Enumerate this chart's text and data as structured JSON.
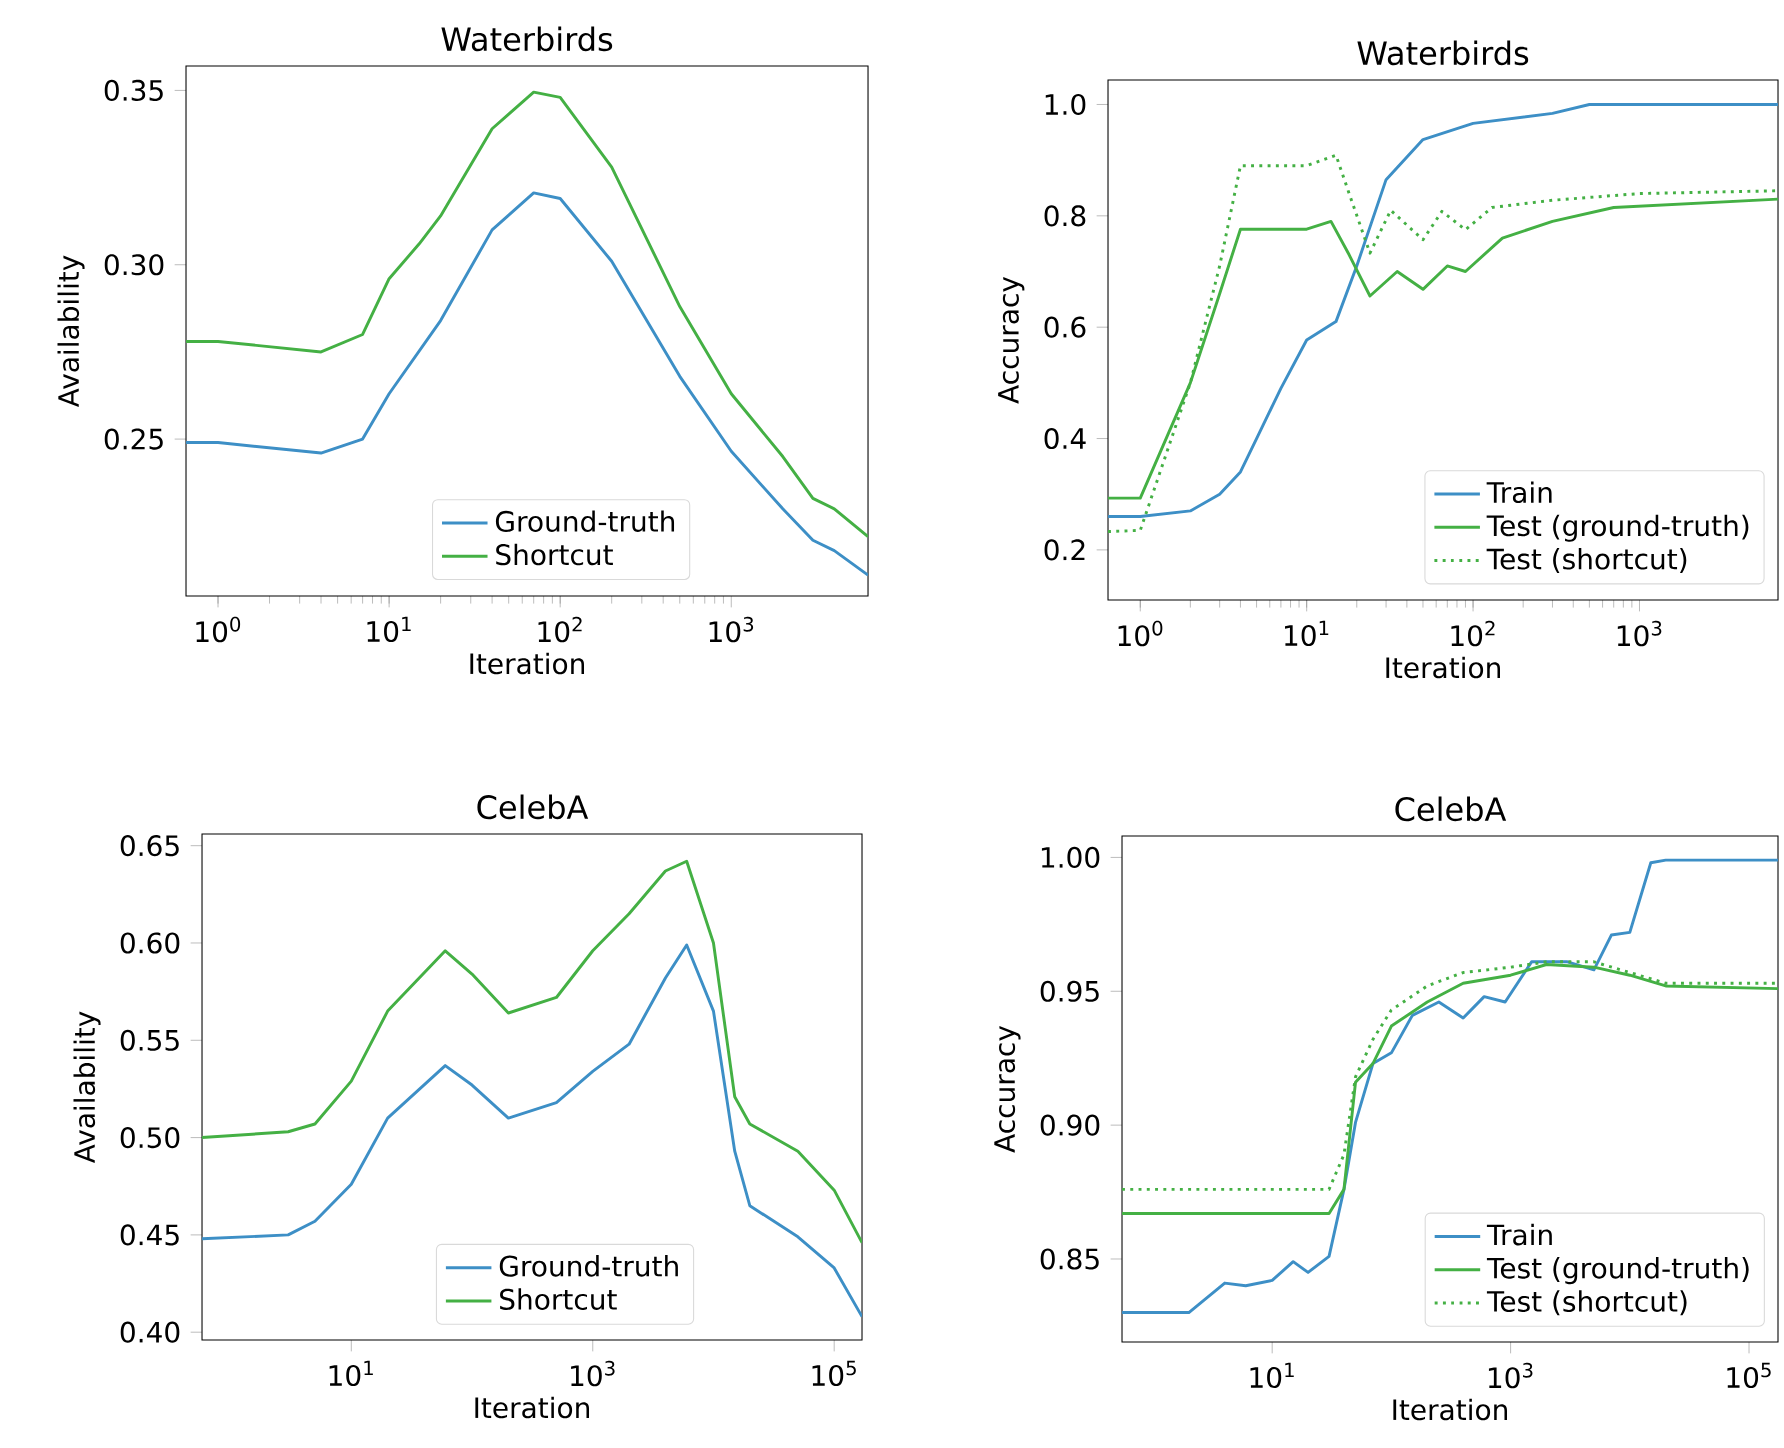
{
  "chart_data": [
    {
      "type": "line",
      "title": "Waterbirds",
      "xlabel": "Iteration",
      "ylabel": "Availability",
      "log": "x",
      "legend": "bottom",
      "xlim": [
        0.65,
        6300
      ],
      "ylim": [
        0.205,
        0.357
      ],
      "xticks": [
        {
          "value": 1,
          "label": "10$^{0}$"
        },
        {
          "value": 10,
          "label": "10$^{1}$"
        },
        {
          "value": 100,
          "label": "10$^{2}$"
        },
        {
          "value": 1000,
          "label": "10$^{3}$"
        }
      ],
      "yticks": [
        0.25,
        {
          "value": 0.3,
          "label": "0.30"
        },
        0.35
      ],
      "series": [
        {
          "name": "Ground-truth",
          "color": "#3d8fc6",
          "line_style": "solid",
          "x": [
            0.65,
            1,
            4,
            7,
            10,
            20,
            40,
            70,
            100,
            200,
            500,
            1000,
            2000,
            3000,
            4000,
            6300
          ],
          "values": [
            0.249,
            0.249,
            0.246,
            0.25,
            0.263,
            0.284,
            0.31,
            0.3206,
            0.319,
            0.301,
            0.268,
            0.2465,
            0.23,
            0.221,
            0.218,
            0.211
          ]
        },
        {
          "name": "Shortcut",
          "color": "#44b044",
          "line_style": "solid",
          "x": [
            0.65,
            1,
            4,
            7,
            10,
            15,
            20,
            40,
            70,
            100,
            200,
            500,
            1000,
            2000,
            3000,
            4000,
            6300
          ],
          "values": [
            0.278,
            0.278,
            0.275,
            0.28,
            0.296,
            0.306,
            0.314,
            0.339,
            0.3495,
            0.348,
            0.328,
            0.288,
            0.263,
            0.245,
            0.233,
            0.23,
            0.222
          ]
        }
      ]
    },
    {
      "type": "line",
      "title": "Waterbirds",
      "xlabel": "Iteration",
      "ylabel": "Accuracy",
      "log": "x",
      "legend": "bottom right",
      "xlim": [
        0.64,
        6800
      ],
      "ylim": [
        0.11,
        1.044
      ],
      "xticks": [
        {
          "value": 1,
          "label": "10$^{0}$"
        },
        {
          "value": 10,
          "label": "10$^{1}$"
        },
        {
          "value": 100,
          "label": "10$^{2}$"
        },
        {
          "value": 1000,
          "label": "10$^{3}$"
        }
      ],
      "yticks": [
        0.2,
        0.4,
        0.6,
        0.8,
        {
          "value": 1,
          "label": "1.0"
        }
      ],
      "series": [
        {
          "name": "Train",
          "color": "#3d8fc6",
          "line_style": "solid",
          "x": [
            0.64,
            1,
            2,
            3,
            4,
            5,
            7,
            10,
            15,
            20,
            30,
            50,
            100,
            300,
            500,
            6800
          ],
          "values": [
            0.26,
            0.26,
            0.27,
            0.3,
            0.34,
            0.4,
            0.49,
            0.577,
            0.61,
            0.71,
            0.865,
            0.937,
            0.966,
            0.984,
            1.0,
            1.0
          ]
        },
        {
          "name": "Test (ground-truth)",
          "color": "#44b044",
          "line_style": "solid",
          "x": [
            0.64,
            1,
            2,
            3,
            4,
            10,
            14,
            18,
            24,
            35,
            50,
            70,
            90,
            150,
            300,
            700,
            6800
          ],
          "values": [
            0.293,
            0.293,
            0.5,
            0.66,
            0.776,
            0.776,
            0.79,
            0.73,
            0.656,
            0.7,
            0.668,
            0.71,
            0.7,
            0.76,
            0.79,
            0.815,
            0.83
          ]
        },
        {
          "name": "Test (shortcut)",
          "color": "#44b044",
          "line_style": "dotted",
          "x": [
            0.64,
            1,
            2,
            3,
            4,
            10,
            15,
            18,
            24,
            32,
            50,
            65,
            90,
            130,
            300,
            1000,
            6800
          ],
          "values": [
            0.233,
            0.235,
            0.5,
            0.71,
            0.89,
            0.89,
            0.909,
            0.84,
            0.733,
            0.81,
            0.757,
            0.808,
            0.775,
            0.815,
            0.828,
            0.84,
            0.845
          ]
        }
      ]
    },
    {
      "type": "line",
      "title": "CelebA",
      "xlabel": "Iteration",
      "ylabel": "Availability",
      "log": "x",
      "legend": "bottom",
      "xlim": [
        0.58,
        170000
      ],
      "ylim": [
        0.396,
        0.656
      ],
      "xticks": [
        {
          "value": 10,
          "label": "10$^{1}$"
        },
        {
          "value": 1000,
          "label": "10$^{3}$"
        },
        {
          "value": 100000,
          "label": "10$^{5}$"
        }
      ],
      "yticks": [
        {
          "value": 0.4,
          "label": "0.40"
        },
        0.45,
        {
          "value": 0.5,
          "label": "0.50"
        },
        0.55,
        {
          "value": 0.6,
          "label": "0.60"
        },
        0.65
      ],
      "series": [
        {
          "name": "Ground-truth",
          "color": "#3d8fc6",
          "line_style": "solid",
          "x": [
            0.58,
            3,
            5,
            10,
            20,
            60,
            100,
            200,
            500,
            1000,
            2000,
            4000,
            6000,
            10000,
            15000,
            20000,
            50000,
            100000,
            170000
          ],
          "values": [
            0.448,
            0.45,
            0.457,
            0.476,
            0.51,
            0.537,
            0.527,
            0.51,
            0.518,
            0.534,
            0.548,
            0.582,
            0.599,
            0.565,
            0.493,
            0.465,
            0.449,
            0.433,
            0.408
          ]
        },
        {
          "name": "Shortcut",
          "color": "#44b044",
          "line_style": "solid",
          "x": [
            0.58,
            3,
            5,
            10,
            20,
            60,
            100,
            200,
            500,
            1000,
            2000,
            4000,
            6000,
            10000,
            15000,
            20000,
            50000,
            100000,
            170000
          ],
          "values": [
            0.5,
            0.503,
            0.507,
            0.529,
            0.565,
            0.596,
            0.584,
            0.564,
            0.572,
            0.596,
            0.615,
            0.637,
            0.642,
            0.6,
            0.521,
            0.507,
            0.493,
            0.473,
            0.446
          ]
        }
      ]
    },
    {
      "type": "line",
      "title": "CelebA",
      "xlabel": "Iteration",
      "ylabel": "Accuracy",
      "log": "x",
      "legend": "bottom right",
      "xlim": [
        0.55,
        175000
      ],
      "ylim": [
        0.819,
        1.008
      ],
      "xticks": [
        {
          "value": 10,
          "label": "10$^{1}$"
        },
        {
          "value": 1000,
          "label": "10$^{3}$"
        },
        {
          "value": 100000,
          "label": "10$^{5}$"
        }
      ],
      "yticks": [
        0.85,
        {
          "value": 0.9,
          "label": "0.90"
        },
        0.95,
        {
          "value": 1,
          "label": "1.00"
        }
      ],
      "series": [
        {
          "name": "Train",
          "color": "#3d8fc6",
          "line_style": "solid",
          "x": [
            0.55,
            2,
            4,
            6,
            10,
            15,
            20,
            30,
            40,
            50,
            70,
            100,
            150,
            250,
            400,
            600,
            900,
            1500,
            3000,
            5000,
            7000,
            10000,
            15000,
            20000,
            175000
          ],
          "values": [
            0.83,
            0.83,
            0.841,
            0.84,
            0.842,
            0.849,
            0.845,
            0.851,
            0.876,
            0.901,
            0.923,
            0.927,
            0.941,
            0.946,
            0.94,
            0.948,
            0.946,
            0.961,
            0.961,
            0.958,
            0.971,
            0.972,
            0.998,
            0.999,
            0.999
          ]
        },
        {
          "name": "Test (ground-truth)",
          "color": "#44b044",
          "line_style": "solid",
          "x": [
            0.55,
            30,
            40,
            50,
            70,
            100,
            200,
            400,
            1000,
            2000,
            5000,
            10000,
            20000,
            175000
          ],
          "values": [
            0.867,
            0.867,
            0.876,
            0.916,
            0.923,
            0.937,
            0.946,
            0.953,
            0.956,
            0.96,
            0.959,
            0.956,
            0.952,
            0.951
          ]
        },
        {
          "name": "Test (shortcut)",
          "color": "#44b044",
          "line_style": "dotted",
          "x": [
            0.55,
            30,
            40,
            50,
            70,
            100,
            200,
            400,
            1000,
            2000,
            5000,
            10000,
            20000,
            175000
          ],
          "values": [
            0.876,
            0.876,
            0.889,
            0.918,
            0.932,
            0.943,
            0.952,
            0.957,
            0.959,
            0.961,
            0.961,
            0.957,
            0.953,
            0.953
          ]
        }
      ]
    }
  ]
}
